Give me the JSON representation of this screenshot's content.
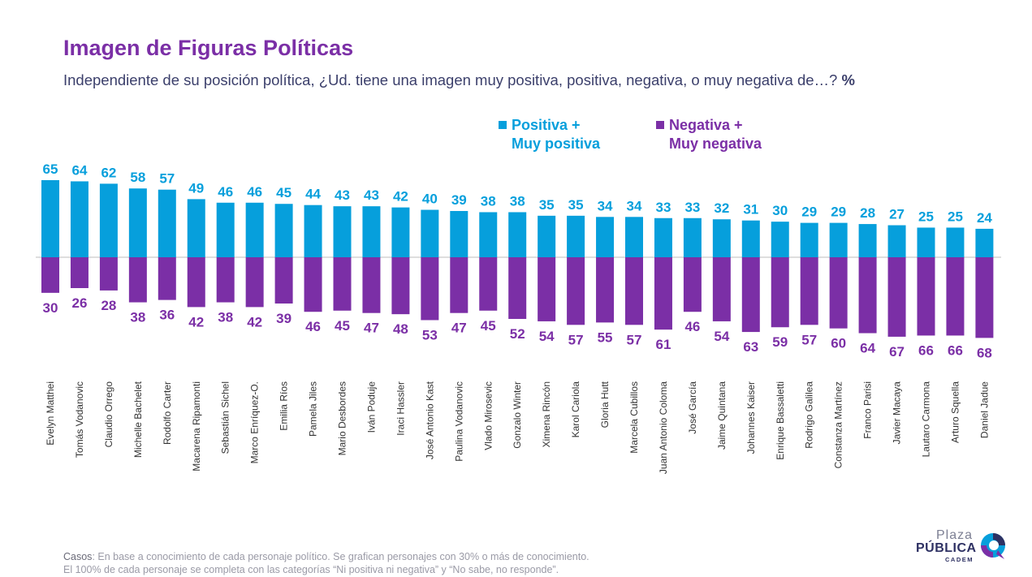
{
  "header": {
    "title": "Imagen de Figuras Políticas",
    "subtitle": "Independiente de su posición política, ¿Ud. tiene una imagen muy positiva, positiva, negativa, o muy negativa de…?",
    "subtitle_unit": "%"
  },
  "legend": {
    "positive_line1": "Positiva +",
    "positive_line2": "Muy positiva",
    "negative_line1": "Negativa +",
    "negative_line2": "Muy negativa"
  },
  "colors": {
    "positive": "#069fdc",
    "negative": "#7b2fa6",
    "axis": "#bdbdbd",
    "category_text": "#333333"
  },
  "chart_data": {
    "type": "bar",
    "categories": [
      "Evelyn Matthei",
      "Tomás Vodanovic",
      "Claudio Orrego",
      "Michelle Bachelet",
      "Rodolfo Carter",
      "Macarena Ripamonti",
      "Sebastián Sichel",
      "Marco Enríquez-O.",
      "Emilia Ríos",
      "Pamela Jiles",
      "Mario Desbordes",
      "Iván Poduje",
      "Iraci Hassler",
      "José Antonio Kast",
      "Paulina Vodanovic",
      "Vlado Mirosevic",
      "Gonzalo Winter",
      "Ximena Rincón",
      "Karol Cariola",
      "Gloria Hutt",
      "Marcela Cubillos",
      "Juan Antonio Coloma",
      "José García",
      "Jaime Quintana",
      "Johannes Kaiser",
      "Enrique Bassaletti",
      "Rodrigo Galilea",
      "Constanza Martínez",
      "Franco Parisi",
      "Javier Macaya",
      "Lautaro Carmona",
      "Arturo Squella",
      "Daniel Jadue"
    ],
    "series": [
      {
        "name": "Positiva + Muy positiva",
        "values": [
          65,
          64,
          62,
          58,
          57,
          49,
          46,
          46,
          45,
          44,
          43,
          43,
          42,
          40,
          39,
          38,
          38,
          35,
          35,
          34,
          34,
          33,
          33,
          32,
          31,
          30,
          29,
          29,
          28,
          27,
          25,
          25,
          24
        ]
      },
      {
        "name": "Negativa + Muy negativa",
        "values": [
          30,
          26,
          28,
          38,
          36,
          42,
          38,
          42,
          39,
          46,
          45,
          47,
          48,
          53,
          47,
          45,
          52,
          54,
          57,
          55,
          57,
          61,
          46,
          54,
          63,
          59,
          57,
          60,
          64,
          67,
          66,
          66,
          68
        ]
      }
    ],
    "ylim": [
      -68,
      65
    ],
    "legend_position": "top-right"
  },
  "footer": {
    "cases_label": "Casos",
    "line1": ": En base a conocimiento de cada personaje político. Se grafican personajes con 30% o más de conocimiento.",
    "line2": "El 100% de cada personaje se completa con las categorías “Ni positiva ni negativa” y “No sabe, no responde”."
  },
  "logo": {
    "plaza": "Plaza",
    "publica": "PÚBLICA",
    "cadem": "CADEM"
  }
}
